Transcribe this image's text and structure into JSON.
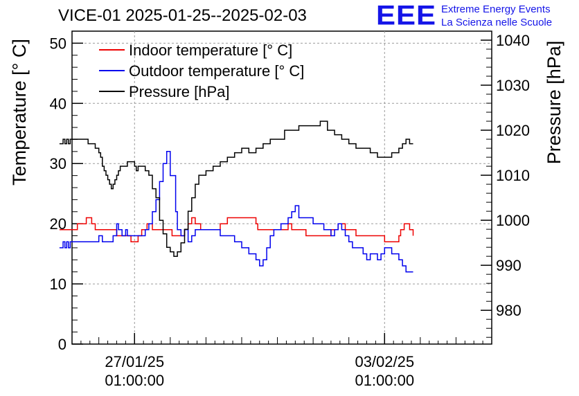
{
  "header": {
    "title": "VICE-01 2025-01-25--2025-02-03",
    "logo_letters": "EEE",
    "logo_line1": "Extreme Energy Events",
    "logo_line2": "La Scienza nelle Scuole"
  },
  "colors": {
    "indoor": "#ee0000",
    "outdoor": "#0000ee",
    "pressure": "#000000",
    "grid": "#9a9a9a",
    "logo": "#1515e8"
  },
  "chart_data": {
    "type": "line",
    "title": "VICE-01 2025-01-25--2025-02-03",
    "xlabel": "",
    "ylabel": "Temperature [° C]",
    "y2label": "Pressure [hPa]",
    "xlim": [
      -1.75,
      10.0
    ],
    "ylim": [
      0,
      52
    ],
    "y2lim": [
      972.5,
      1042
    ],
    "grid": true,
    "legend_position": "top-left",
    "x_ticks": [
      {
        "value": 0,
        "line1": "27/01/25",
        "line2": "01:00:00"
      },
      {
        "value": 7,
        "line1": "03/02/25",
        "line2": "01:00:00"
      }
    ],
    "y_ticks": [
      0,
      10,
      20,
      30,
      40,
      50
    ],
    "y2_ticks": [
      980,
      990,
      1000,
      1010,
      1020,
      1030,
      1040
    ],
    "series": [
      {
        "name": "Indoor temperature [° C]",
        "axis": "left",
        "x": [
          -2.1,
          -1.8,
          -1.7,
          -1.6,
          -1.4,
          -1.35,
          -1.2,
          -1.1,
          -1.05,
          -0.9,
          -0.85,
          -0.75,
          -0.65,
          -0.5,
          -0.35,
          -0.25,
          -0.1,
          0.0,
          0.1,
          0.2,
          0.35,
          0.5,
          0.7,
          0.9,
          1.05,
          1.2,
          1.4,
          1.5,
          1.6,
          1.7,
          1.85,
          2.0,
          2.2,
          2.4,
          2.6,
          2.8,
          3.0,
          3.2,
          3.4,
          3.45,
          3.6,
          3.8,
          4.0,
          4.2,
          4.3,
          4.4,
          4.6,
          4.8,
          4.9,
          5.0,
          5.1,
          5.3,
          5.5,
          5.7,
          5.9,
          6.0,
          6.2,
          6.35,
          6.5,
          6.6,
          6.8,
          7.0,
          7.2,
          7.4,
          7.45,
          7.55,
          7.7,
          7.8
        ],
        "y": [
          19,
          19,
          19,
          20,
          20,
          21,
          20,
          19,
          19,
          19,
          19,
          19,
          19,
          18,
          18,
          18,
          17,
          17,
          18,
          19,
          20,
          19,
          19,
          19,
          18,
          18,
          19,
          20,
          21,
          20,
          19,
          19,
          19,
          20,
          21,
          21,
          21,
          21,
          20,
          19,
          19,
          19,
          19,
          19,
          20,
          19,
          19,
          18,
          18,
          18,
          18,
          18,
          19,
          20,
          19,
          19,
          18,
          18,
          18,
          18,
          18,
          17,
          17,
          18,
          19,
          20,
          19,
          18
        ]
      },
      {
        "name": "Outdoor temperature [° C]",
        "axis": "left",
        "x": [
          -2.1,
          -2.0,
          -1.95,
          -1.9,
          -1.85,
          -1.8,
          -1.7,
          -1.6,
          -1.4,
          -1.2,
          -1.0,
          -0.9,
          -0.8,
          -0.6,
          -0.5,
          -0.45,
          -0.35,
          -0.25,
          -0.2,
          0.0,
          0.2,
          0.3,
          0.4,
          0.5,
          0.6,
          0.7,
          0.8,
          0.9,
          1.0,
          1.15,
          1.2,
          1.3,
          1.4,
          1.5,
          1.6,
          1.7,
          1.8,
          1.9,
          2.0,
          2.1,
          2.2,
          2.3,
          2.4,
          2.5,
          2.6,
          2.8,
          3.0,
          3.2,
          3.4,
          3.5,
          3.6,
          3.7,
          3.8,
          3.9,
          4.0,
          4.1,
          4.2,
          4.3,
          4.4,
          4.5,
          4.6,
          4.8,
          5.0,
          5.1,
          5.2,
          5.3,
          5.4,
          5.5,
          5.6,
          5.7,
          5.8,
          5.9,
          6.0,
          6.1,
          6.2,
          6.3,
          6.4,
          6.5,
          6.6,
          6.7,
          6.8,
          6.9,
          7.0,
          7.1,
          7.2,
          7.3,
          7.4,
          7.5,
          7.6,
          7.7,
          7.8
        ],
        "y": [
          16,
          17,
          16,
          17,
          16,
          17,
          17,
          17,
          17,
          17,
          18,
          17,
          17,
          18,
          20,
          19,
          18,
          19,
          18,
          18,
          18,
          19,
          20,
          22,
          24,
          27,
          30,
          32,
          28,
          22,
          19,
          18,
          19,
          17,
          18,
          19,
          19,
          19,
          19,
          19,
          19,
          19,
          18,
          18,
          18,
          17,
          16,
          15,
          14,
          13,
          14,
          16,
          18,
          19,
          19,
          20,
          20,
          21,
          22,
          23,
          21,
          21,
          20,
          20,
          20,
          19,
          19,
          18,
          19,
          20,
          19,
          18,
          17,
          16,
          16,
          16,
          15,
          14,
          15,
          15,
          14,
          15,
          16,
          16,
          15,
          15,
          14,
          13,
          12,
          12,
          12
        ]
      },
      {
        "name": "Pressure [hPa]",
        "axis": "right",
        "x": [
          -2.1,
          -2.0,
          -1.95,
          -1.9,
          -1.85,
          -1.8,
          -1.7,
          -1.6,
          -1.5,
          -1.3,
          -1.1,
          -1.0,
          -0.95,
          -0.9,
          -0.85,
          -0.8,
          -0.75,
          -0.7,
          -0.65,
          -0.6,
          -0.55,
          -0.5,
          -0.45,
          -0.4,
          -0.3,
          -0.2,
          -0.1,
          0.0,
          0.05,
          0.1,
          0.2,
          0.3,
          0.4,
          0.5,
          0.6,
          0.7,
          0.8,
          0.9,
          1.0,
          1.1,
          1.2,
          1.3,
          1.4,
          1.5,
          1.6,
          1.7,
          1.8,
          2.0,
          2.2,
          2.4,
          2.6,
          2.8,
          3.0,
          3.2,
          3.4,
          3.6,
          3.8,
          4.0,
          4.2,
          4.4,
          4.6,
          4.8,
          5.0,
          5.2,
          5.4,
          5.6,
          5.8,
          6.0,
          6.2,
          6.4,
          6.6,
          6.8,
          7.0,
          7.2,
          7.4,
          7.5,
          7.6,
          7.7,
          7.8
        ],
        "y": [
          1017,
          1018,
          1017,
          1018,
          1017,
          1018,
          1018,
          1018,
          1018,
          1017,
          1016,
          1015,
          1014,
          1012,
          1011,
          1010,
          1009,
          1008,
          1007,
          1008,
          1009,
          1010,
          1011,
          1012,
          1012,
          1013,
          1013,
          1012,
          1011,
          1012,
          1012,
          1011,
          1010,
          1007,
          1005,
          1000,
          997,
          994,
          993,
          992,
          993,
          995,
          998,
          1002,
          1005,
          1008,
          1010,
          1011,
          1012,
          1013,
          1014,
          1015,
          1016,
          1015,
          1016,
          1017,
          1018,
          1018,
          1020,
          1020,
          1021,
          1021,
          1021,
          1022,
          1020,
          1019,
          1018,
          1017,
          1016,
          1016,
          1015,
          1014,
          1014,
          1015,
          1016,
          1017,
          1018,
          1017,
          1017
        ]
      }
    ]
  }
}
